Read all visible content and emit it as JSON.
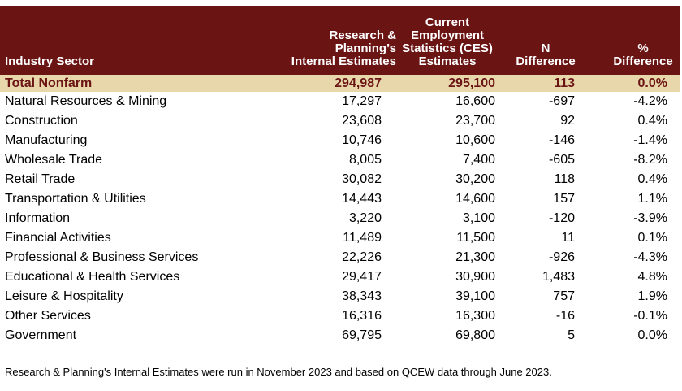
{
  "headers": {
    "sector": "Industry Sector",
    "rp": [
      "Research &",
      "Planning’s",
      "Internal Estimates"
    ],
    "ces": [
      "Current",
      "Employment",
      "Statistics (CES)",
      "Estimates"
    ],
    "n": [
      "N",
      "Difference"
    ],
    "pct": [
      "%",
      "Difference"
    ]
  },
  "total": {
    "sector": "Total Nonfarm",
    "rp": "294,987",
    "ces": "295,100",
    "n": "113",
    "pct": "0.0%"
  },
  "rows": [
    {
      "sector": "Natural Resources & Mining",
      "rp": "17,297",
      "ces": "16,600",
      "n": "-697",
      "pct": "-4.2%"
    },
    {
      "sector": "Construction",
      "rp": "23,608",
      "ces": "23,700",
      "n": "92",
      "pct": "0.4%"
    },
    {
      "sector": "Manufacturing",
      "rp": "10,746",
      "ces": "10,600",
      "n": "-146",
      "pct": "-1.4%"
    },
    {
      "sector": "Wholesale Trade",
      "rp": "8,005",
      "ces": "7,400",
      "n": "-605",
      "pct": "-8.2%"
    },
    {
      "sector": "Retail Trade",
      "rp": "30,082",
      "ces": "30,200",
      "n": "118",
      "pct": "0.4%"
    },
    {
      "sector": "Transportation & Utilities",
      "rp": "14,443",
      "ces": "14,600",
      "n": "157",
      "pct": "1.1%"
    },
    {
      "sector": "Information",
      "rp": "3,220",
      "ces": "3,100",
      "n": "-120",
      "pct": "-3.9%"
    },
    {
      "sector": "Financial Activities",
      "rp": "11,489",
      "ces": "11,500",
      "n": "11",
      "pct": "0.1%"
    },
    {
      "sector": "Professional & Business Services",
      "rp": "22,226",
      "ces": "21,300",
      "n": "-926",
      "pct": "-4.3%"
    },
    {
      "sector": "Educational & Health Services",
      "rp": "29,417",
      "ces": "30,900",
      "n": "1,483",
      "pct": "4.8%"
    },
    {
      "sector": "Leisure & Hospitality",
      "rp": "38,343",
      "ces": "39,100",
      "n": "757",
      "pct": "1.9%"
    },
    {
      "sector": "Other Services",
      "rp": "16,316",
      "ces": "16,300",
      "n": "-16",
      "pct": "-0.1%"
    },
    {
      "sector": "Government",
      "rp": "69,795",
      "ces": "69,800",
      "n": "5",
      "pct": "0.0%"
    }
  ],
  "note": "Research & Planning's Internal Estimates were run in November 2023 and based on QCEW data through June 2023.",
  "colors": {
    "header_bg": "#6b1414",
    "total_bg": "#e9d7ac",
    "total_text": "#6b1414"
  }
}
